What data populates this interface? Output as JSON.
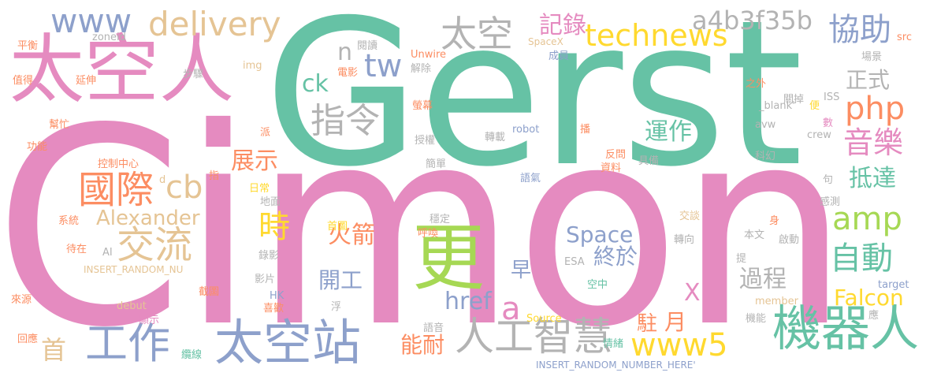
{
  "colors": {
    "pink": "#e58bc0",
    "green": "#66c2a5",
    "blue": "#8da0cb",
    "orange": "#fc8d62",
    "lime": "#a6d854",
    "yellow": "#ffd92f",
    "tan": "#e5c494",
    "gray": "#b3b3b3"
  },
  "words": {
    "cimon": "Cimon",
    "gerst": "Gerst",
    "taikongren": "太空人",
    "geng": "更",
    "taikongzhan": "太空站",
    "jiqiren": "機器人",
    "gongzuo": "工作",
    "rengongzhihui": "人工智慧",
    "guoji": "國際",
    "jiaoliu": "交流",
    "www": "www",
    "delivery": "delivery",
    "taikong": "太空",
    "technews": "technews",
    "jilu": "記錄",
    "xiezhu": "協助",
    "a4b3f35b": "a4b3f35b",
    "php": "php",
    "yinyue": "音樂",
    "zhiling": "指令",
    "yunzuo": "運作",
    "zhengshi": "正式",
    "tw": "tw",
    "n": "n",
    "ck": "ck",
    "zhanshi": "展示",
    "cb": "cb",
    "alexander": "Alexander",
    "shi": "時",
    "huojian": "火箭",
    "space": "Space",
    "zhongyu": "終於",
    "guocheng": "過程",
    "didа": "抵達",
    "amp": "amp",
    "zidong": "自動",
    "falcon": "Falcon",
    "kaigong": "開工",
    "href": "href",
    "zao": "早",
    "a": "a",
    "x": "X",
    "yue": "月",
    "zhu": "駐",
    "www5": "www5",
    "nengnai": "能耐",
    "shou": "首",
    "pingheng": "平衡",
    "zhide": "值得",
    "yanshen": "延伸",
    "bangmang": "幫忙",
    "gongneng": "功能",
    "kongzhizhongxin": "控制中心",
    "xitong": "系統",
    "daizai": "待在",
    "ai": "AI",
    "insert_nu": "INSERT_RANDOM_NU",
    "laiyuan": "來源",
    "jietu": "截圖",
    "debut": "debut",
    "xianshi": "顯示",
    "huiying": "回應",
    "lanxian": "纜線",
    "zoneid": "zoneid",
    "img": "img",
    "buzhou": "步驟",
    "pai": "派",
    "zhi": "指",
    "d": "d",
    "richang": "日常",
    "ditu": "地面",
    "luying": "錄影",
    "yingpian": "影片",
    "hk": "HK",
    "xihuan": "喜歡",
    "yuedu": "閱讀",
    "dianying": "電影",
    "unwire": "Unwire",
    "jiechu": "解除",
    "yingmu": "螢幕",
    "shouquan": "授權",
    "jiandan": "簡單",
    "yuqi": "語氣",
    "wending": "穩定",
    "huhuan": "呼喚",
    "shoutu": "首圖",
    "fu": "浮",
    "yuyin": "語音",
    "source": "Source",
    "insert_full": "INSERT_RANDOM_NUMBER_HERE'",
    "spacex": "SpaceX",
    "chengyuan": "成員",
    "zhuanzai": "轉載",
    "robot": "robot",
    "fanwen": "反問",
    "ziliao": "資料",
    "juyou": "具備",
    "blank": "_blank'",
    "bo": "播",
    "zhiwai": "之外",
    "iss": "ISS",
    "guandiao": "關掉",
    "avw": "avw",
    "kehuan": "科幻",
    "crew": "crew",
    "bian": "便",
    "shu": "數",
    "ju": "句",
    "ganche": "感測",
    "changjing": "場景",
    "src": "src",
    "jiaotan": "交談",
    "shen": "身",
    "benwen": "本文",
    "qidong": "啟動",
    "zhuanxiang": "轉向",
    "ti": "提",
    "esa": "ESA",
    "kongzhong": "空中",
    "target": "target",
    "member": "member",
    "qingxu": "情緒",
    "jineng": "機能",
    "ying": "應"
  }
}
